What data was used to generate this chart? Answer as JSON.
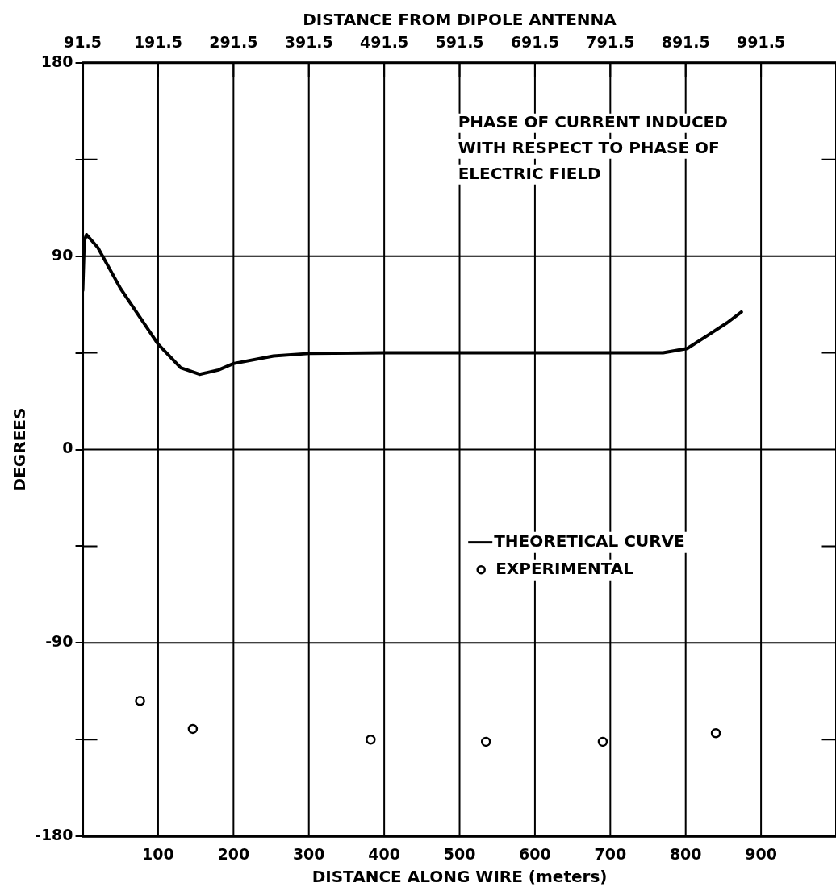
{
  "chart_data": {
    "type": "line",
    "xlabel": "DISTANCE ALONG WIRE (meters)",
    "x2label": "DISTANCE FROM DIPOLE ANTENNA",
    "ylabel": "DEGREES",
    "xlim": [
      0,
      1000
    ],
    "xticks": [
      100,
      200,
      300,
      400,
      500,
      600,
      700,
      800,
      900
    ],
    "x2lim": [
      91.5,
      1091.5
    ],
    "x2ticks": [
      91.5,
      191.5,
      291.5,
      391.5,
      491.5,
      591.5,
      691.5,
      791.5,
      891.5,
      991.5
    ],
    "ylim": [
      -180,
      180
    ],
    "yticks": [
      -180,
      {
        "value": -135,
        "label": null
      },
      -90,
      {
        "value": -45,
        "label": null
      },
      0,
      {
        "value": 45,
        "label": null
      },
      90,
      {
        "value": 135,
        "label": null
      },
      180
    ],
    "grid": true,
    "legend": "right",
    "annotations": [
      "PHASE OF CURRENT INDUCED WITH RESPECT TO PHASE OF ELECTRIC FIELD"
    ],
    "series": [
      {
        "name": "THEORETICAL CURVE",
        "type": "line",
        "marker": "none",
        "line_style": "solid",
        "color": "#000000",
        "x": [
          0,
          2,
          5,
          20,
          50,
          100,
          130,
          155,
          180,
          200,
          253,
          300,
          400,
          500,
          600,
          700,
          770,
          802,
          833,
          855,
          874
        ],
        "values": [
          74,
          97,
          100,
          94,
          75,
          49,
          38,
          35,
          37,
          40,
          43.5,
          44.7,
          45,
          45,
          45,
          45,
          45,
          47,
          54,
          59,
          64
        ]
      },
      {
        "name": "EXPERIMENTAL",
        "type": "scatter",
        "marker": "circle",
        "color": "#000000",
        "x": [
          76,
          146,
          382,
          535,
          690,
          840
        ],
        "values": [
          -117,
          -130,
          -135,
          -136,
          -136,
          -132
        ]
      }
    ]
  }
}
